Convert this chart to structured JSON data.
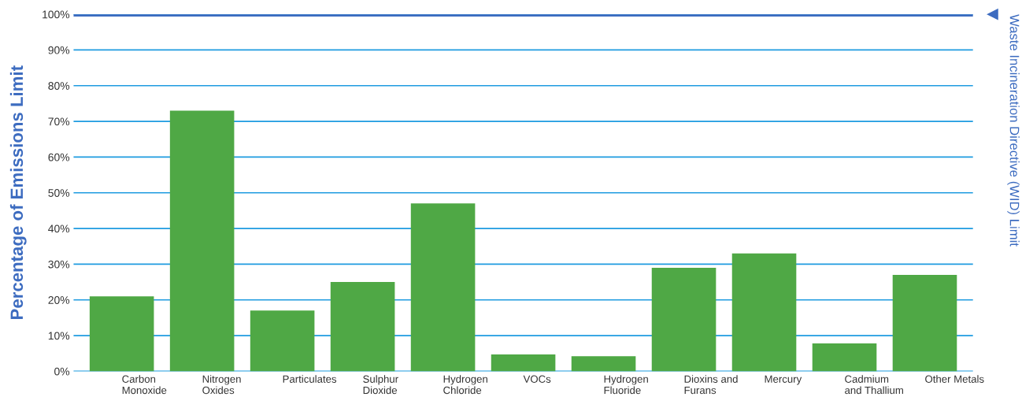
{
  "chart_data": {
    "type": "bar",
    "categories": [
      "Carbon\nMonoxide",
      "Nitrogen\nOxides",
      "Particulates",
      "Sulphur\nDioxide",
      "Hydrogen\nChloride",
      "VOCs",
      "Hydrogen\nFluoride",
      "Dioxins and\nFurans",
      "Mercury",
      "Cadmium\nand Thallium",
      "Other Metals"
    ],
    "values": [
      21,
      73,
      17,
      25,
      47,
      4.7,
      4.2,
      29,
      33,
      7.8,
      27
    ],
    "color": "#4fa845",
    "ylabel": "Percentage of Emissions Limit",
    "ylim": [
      0,
      100
    ],
    "yticks": [
      {
        "value": 0,
        "label": "0%"
      },
      {
        "value": 10,
        "label": "10%"
      },
      {
        "value": 20,
        "label": "20%"
      },
      {
        "value": 30,
        "label": "30%"
      },
      {
        "value": 40,
        "label": "40%"
      },
      {
        "value": 50,
        "label": "50%"
      },
      {
        "value": 60,
        "label": "60%"
      },
      {
        "value": 70,
        "label": "70%"
      },
      {
        "value": 80,
        "label": "80%"
      },
      {
        "value": 90,
        "label": "90%"
      },
      {
        "value": 100,
        "label": "100%"
      }
    ],
    "grid": "y",
    "ref_lines": [
      {
        "axis": "y",
        "value": 100,
        "label": "Waste Incineration Directive (WID) Limit",
        "color": "#3d6cc0"
      }
    ]
  }
}
